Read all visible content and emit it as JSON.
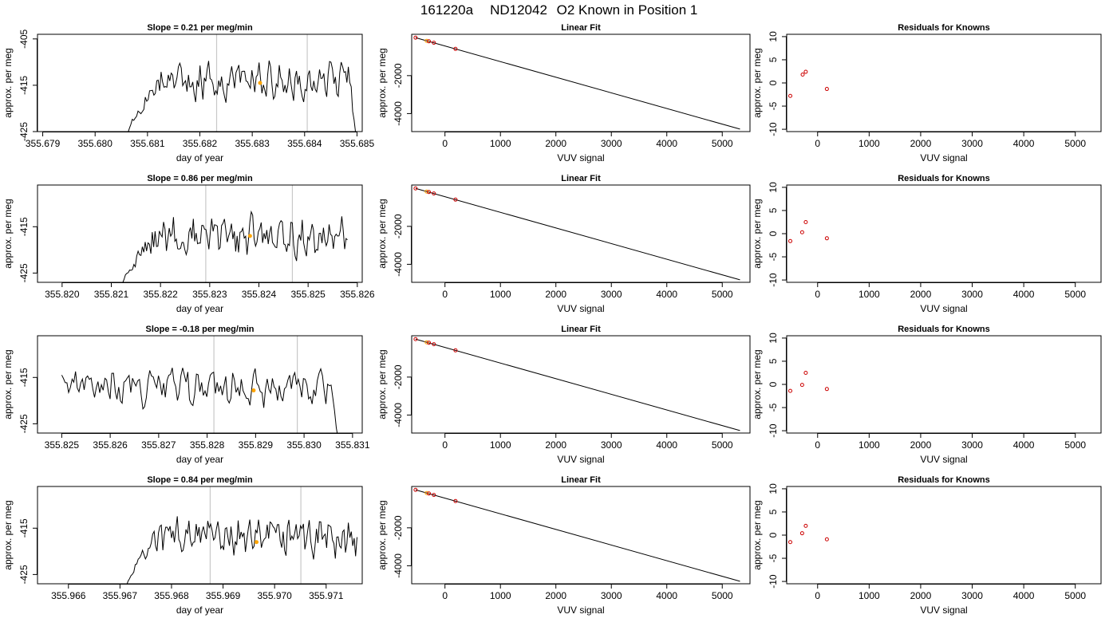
{
  "header": {
    "run": "161220a",
    "tank": "ND12042",
    "description": "O2 Known in Position  1"
  },
  "colors": {
    "trace": "#000000",
    "marker_orange": "#ffa500",
    "residual_red": "#cc0000",
    "vline": "#c8c8c8"
  },
  "labels": {
    "slope_prefix": "Slope =",
    "slope_suffix": "per meg/min",
    "trace_xlabel": "day of year",
    "trace_ylabel": "approx. per meg",
    "fit_title": "Linear Fit",
    "fit_xlabel": "VUV signal",
    "fit_ylabel": "approx. per meg",
    "res_title": "Residuals for Knowns",
    "res_xlabel": "VUV signal",
    "res_ylabel": "approx. per meg"
  },
  "chart_data": [
    {
      "type": "line",
      "slope": "0.21",
      "x_ticks": [
        "355.679",
        "355.680",
        "355.681",
        "355.682",
        "355.683",
        "355.684",
        "355.685"
      ],
      "x_tick_values": [
        355.679,
        355.68,
        355.681,
        355.682,
        355.683,
        355.684,
        355.685
      ],
      "xlim": [
        355.6789,
        355.6851
      ],
      "y_ticks": [
        "-405",
        "-415",
        "-425"
      ],
      "y_tick_values": [
        -405,
        -415,
        -425
      ],
      "ylim": [
        -425,
        -404
      ],
      "vlines": [
        355.68232,
        355.68405
      ],
      "marker": {
        "x": 355.68315,
        "y": -414.5
      },
      "trace": {
        "x_start": 355.6806,
        "x_end": 355.685,
        "seed": 11,
        "start_low": -427,
        "level": -414,
        "end_low": -427
      }
    },
    {
      "type": "line",
      "slope": "0.86",
      "x_ticks": [
        "355.820",
        "355.821",
        "355.822",
        "355.823",
        "355.824",
        "355.825",
        "355.826"
      ],
      "x_tick_values": [
        355.82,
        355.821,
        355.822,
        355.823,
        355.824,
        355.825,
        355.826
      ],
      "xlim": [
        355.8195,
        355.8261
      ],
      "y_ticks": [
        "-415",
        "-425"
      ],
      "y_tick_values": [
        -415,
        -425
      ],
      "ylim": [
        -427,
        -406
      ],
      "vlines": [
        355.82292,
        355.82468
      ],
      "marker": {
        "x": 355.82382,
        "y": -417
      },
      "trace": {
        "x_start": 355.8212,
        "x_end": 355.8258,
        "seed": 23,
        "start_low": -429,
        "level": -417,
        "end_low": null
      }
    },
    {
      "type": "line",
      "slope": "-0.18",
      "x_ticks": [
        "355.825",
        "355.826",
        "355.827",
        "355.828",
        "355.829",
        "355.830",
        "355.831"
      ],
      "x_tick_values": [
        355.825,
        355.826,
        355.827,
        355.828,
        355.829,
        355.83,
        355.831
      ],
      "xlim": [
        355.8245,
        355.8312
      ],
      "y_ticks": [
        "-415",
        "-425"
      ],
      "y_tick_values": [
        -415,
        -425
      ],
      "ylim": [
        -427,
        -406
      ],
      "vlines": [
        355.82814,
        355.82986
      ],
      "marker": {
        "x": 355.82896,
        "y": -417.8
      },
      "trace": {
        "x_start": 355.825,
        "x_end": 355.8307,
        "seed": 37,
        "start_low": null,
        "level": -417,
        "end_low": -428
      }
    },
    {
      "type": "line",
      "slope": "0.84",
      "x_ticks": [
        "355.966",
        "355.967",
        "355.968",
        "355.969",
        "355.970",
        "355.971"
      ],
      "x_tick_values": [
        355.966,
        355.967,
        355.968,
        355.969,
        355.97,
        355.971
      ],
      "xlim": [
        355.9654,
        355.9717
      ],
      "y_ticks": [
        "-415",
        "-425"
      ],
      "y_tick_values": [
        -415,
        -425
      ],
      "ylim": [
        -427,
        -406
      ],
      "vlines": [
        355.96875,
        355.97051
      ],
      "marker": {
        "x": 355.96965,
        "y": -418
      },
      "trace": {
        "x_start": 355.9671,
        "x_end": 355.9716,
        "seed": 51,
        "start_low": -429,
        "level": -417,
        "end_low": null
      }
    }
  ],
  "fit_panels": [
    {
      "type": "scatter",
      "x_ticks": [
        "0",
        "1000",
        "2000",
        "3000",
        "4000",
        "5000"
      ],
      "x_tick_values": [
        0,
        1000,
        2000,
        3000,
        4000,
        5000
      ],
      "xlim": [
        -600,
        5500
      ],
      "y_ticks": [
        "-2000",
        "-4000"
      ],
      "y_tick_values": [
        -2000,
        -4000
      ],
      "ylim": [
        -4950,
        180
      ],
      "line": {
        "x": [
          -530,
          5320
        ],
        "y": [
          0,
          -4820
        ]
      },
      "points": [
        {
          "x": -530,
          "y": 0,
          "color": "red"
        },
        {
          "x": -330,
          "y": -165,
          "color": "orange"
        },
        {
          "x": -290,
          "y": -190,
          "color": "red"
        },
        {
          "x": -200,
          "y": -265,
          "color": "red"
        },
        {
          "x": 190,
          "y": -590,
          "color": "red"
        }
      ]
    },
    {
      "type": "scatter",
      "x_ticks": [
        "0",
        "1000",
        "2000",
        "3000",
        "4000",
        "5000"
      ],
      "x_tick_values": [
        0,
        1000,
        2000,
        3000,
        4000,
        5000
      ],
      "xlim": [
        -600,
        5500
      ],
      "y_ticks": [
        "-2000",
        "-4000"
      ],
      "y_tick_values": [
        -2000,
        -4000
      ],
      "ylim": [
        -4950,
        180
      ],
      "line": {
        "x": [
          -530,
          5320
        ],
        "y": [
          0,
          -4820
        ]
      },
      "points": [
        {
          "x": -530,
          "y": 0,
          "color": "red"
        },
        {
          "x": -330,
          "y": -165,
          "color": "orange"
        },
        {
          "x": -290,
          "y": -190,
          "color": "red"
        },
        {
          "x": -200,
          "y": -265,
          "color": "red"
        },
        {
          "x": 190,
          "y": -590,
          "color": "red"
        }
      ]
    },
    {
      "type": "scatter",
      "x_ticks": [
        "0",
        "1000",
        "2000",
        "3000",
        "4000",
        "5000"
      ],
      "x_tick_values": [
        0,
        1000,
        2000,
        3000,
        4000,
        5000
      ],
      "xlim": [
        -600,
        5500
      ],
      "y_ticks": [
        "-2000",
        "-4000"
      ],
      "y_tick_values": [
        -2000,
        -4000
      ],
      "ylim": [
        -4950,
        180
      ],
      "line": {
        "x": [
          -530,
          5320
        ],
        "y": [
          0,
          -4820
        ]
      },
      "points": [
        {
          "x": -530,
          "y": 0,
          "color": "red"
        },
        {
          "x": -330,
          "y": -165,
          "color": "orange"
        },
        {
          "x": -290,
          "y": -190,
          "color": "red"
        },
        {
          "x": -200,
          "y": -265,
          "color": "red"
        },
        {
          "x": 190,
          "y": -590,
          "color": "red"
        }
      ]
    },
    {
      "type": "scatter",
      "x_ticks": [
        "0",
        "1000",
        "2000",
        "3000",
        "4000",
        "5000"
      ],
      "x_tick_values": [
        0,
        1000,
        2000,
        3000,
        4000,
        5000
      ],
      "xlim": [
        -600,
        5500
      ],
      "y_ticks": [
        "-2000",
        "-4000"
      ],
      "y_tick_values": [
        -2000,
        -4000
      ],
      "ylim": [
        -4950,
        180
      ],
      "line": {
        "x": [
          -530,
          5320
        ],
        "y": [
          0,
          -4820
        ]
      },
      "points": [
        {
          "x": -530,
          "y": 0,
          "color": "red"
        },
        {
          "x": -330,
          "y": -165,
          "color": "orange"
        },
        {
          "x": -290,
          "y": -190,
          "color": "red"
        },
        {
          "x": -200,
          "y": -265,
          "color": "red"
        },
        {
          "x": 190,
          "y": -590,
          "color": "red"
        }
      ]
    }
  ],
  "residual_panels": [
    {
      "type": "scatter",
      "x_ticks": [
        "0",
        "1000",
        "2000",
        "3000",
        "4000",
        "5000"
      ],
      "x_tick_values": [
        0,
        1000,
        2000,
        3000,
        4000,
        5000
      ],
      "xlim": [
        -600,
        5500
      ],
      "y_ticks": [
        "10",
        "5",
        "0",
        "-5",
        "-10"
      ],
      "y_tick_values": [
        10,
        5,
        0,
        -5,
        -10
      ],
      "ylim": [
        -10.5,
        10.5
      ],
      "points": [
        {
          "x": -530,
          "y": -2.8
        },
        {
          "x": -290,
          "y": 1.8
        },
        {
          "x": -230,
          "y": 2.4
        },
        {
          "x": 180,
          "y": -1.3
        }
      ]
    },
    {
      "type": "scatter",
      "x_ticks": [
        "0",
        "1000",
        "2000",
        "3000",
        "4000",
        "5000"
      ],
      "x_tick_values": [
        0,
        1000,
        2000,
        3000,
        4000,
        5000
      ],
      "xlim": [
        -600,
        5500
      ],
      "y_ticks": [
        "10",
        "5",
        "0",
        "-5",
        "-10"
      ],
      "y_tick_values": [
        10,
        5,
        0,
        -5,
        -10
      ],
      "ylim": [
        -10.5,
        10.5
      ],
      "points": [
        {
          "x": -530,
          "y": -1.6
        },
        {
          "x": -300,
          "y": 0.3
        },
        {
          "x": -230,
          "y": 2.5
        },
        {
          "x": 180,
          "y": -1.0
        }
      ]
    },
    {
      "type": "scatter",
      "x_ticks": [
        "0",
        "1000",
        "2000",
        "3000",
        "4000",
        "5000"
      ],
      "x_tick_values": [
        0,
        1000,
        2000,
        3000,
        4000,
        5000
      ],
      "xlim": [
        -600,
        5500
      ],
      "y_ticks": [
        "10",
        "5",
        "0",
        "-5",
        "-10"
      ],
      "y_tick_values": [
        10,
        5,
        0,
        -5,
        -10
      ],
      "ylim": [
        -10.5,
        10.5
      ],
      "points": [
        {
          "x": -530,
          "y": -1.4
        },
        {
          "x": -300,
          "y": -0.1
        },
        {
          "x": -230,
          "y": 2.5
        },
        {
          "x": 180,
          "y": -1.0
        }
      ]
    },
    {
      "type": "scatter",
      "x_ticks": [
        "0",
        "1000",
        "2000",
        "3000",
        "4000",
        "5000"
      ],
      "x_tick_values": [
        0,
        1000,
        2000,
        3000,
        4000,
        5000
      ],
      "xlim": [
        -600,
        5500
      ],
      "y_ticks": [
        "10",
        "5",
        "0",
        "-5",
        "-10"
      ],
      "y_tick_values": [
        10,
        5,
        0,
        -5,
        -10
      ],
      "ylim": [
        -10.5,
        10.5
      ],
      "points": [
        {
          "x": -530,
          "y": -1.5
        },
        {
          "x": -300,
          "y": 0.4
        },
        {
          "x": -230,
          "y": 2.0
        },
        {
          "x": 180,
          "y": -0.9
        }
      ]
    }
  ]
}
